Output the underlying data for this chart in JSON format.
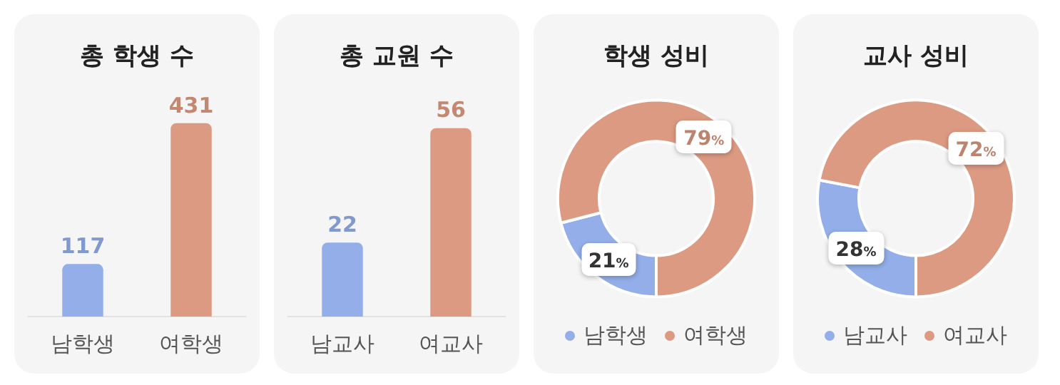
{
  "chart_data": [
    {
      "type": "bar",
      "title": "총 학생 수",
      "categories": [
        "남학생",
        "여학생"
      ],
      "values": [
        117,
        431
      ],
      "colors": [
        "#93aee8",
        "#dd9a82"
      ],
      "data_labels": true,
      "legend": false
    },
    {
      "type": "bar",
      "title": "총 교원 수",
      "categories": [
        "남교사",
        "여교사"
      ],
      "values": [
        22,
        56
      ],
      "colors": [
        "#93aee8",
        "#dd9a82"
      ],
      "data_labels": true,
      "legend": false
    },
    {
      "type": "donut",
      "title": "학생 성비",
      "categories": [
        "남학생",
        "여학생"
      ],
      "values": [
        21,
        79
      ],
      "colors": [
        "#93aee8",
        "#dd9a82"
      ],
      "value_labels": [
        "21%",
        "79%"
      ],
      "legend": "bottom"
    },
    {
      "type": "donut",
      "title": "교사 성비",
      "categories": [
        "남교사",
        "여교사"
      ],
      "values": [
        28,
        72
      ],
      "colors": [
        "#93aee8",
        "#dd9a82"
      ],
      "value_labels": [
        "28%",
        "72%"
      ],
      "legend": "bottom"
    }
  ]
}
